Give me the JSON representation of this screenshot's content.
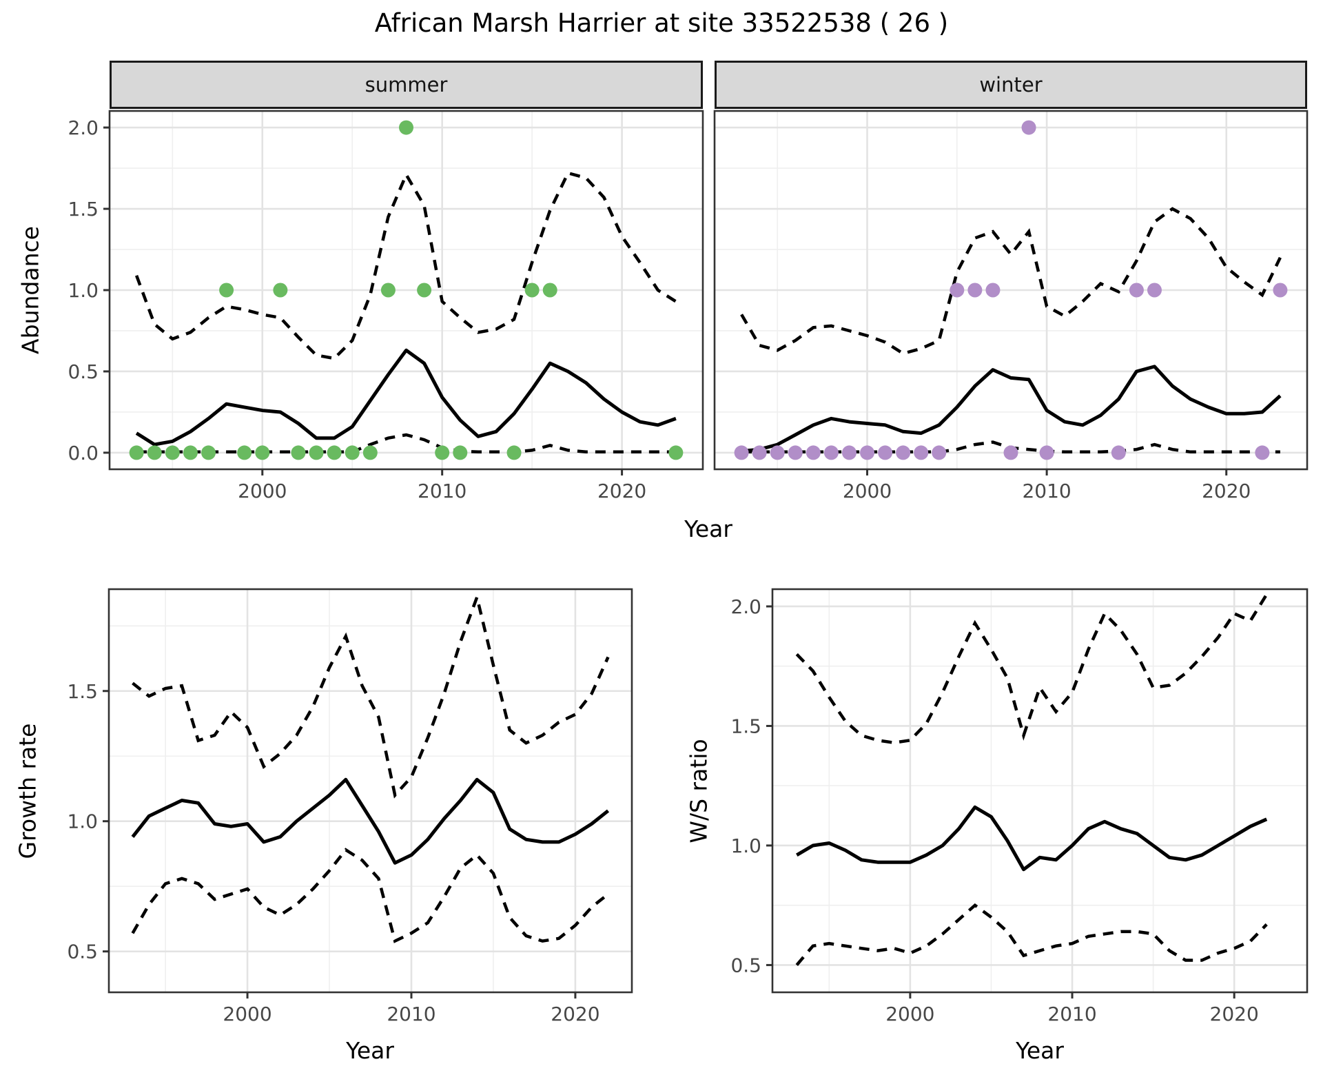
{
  "title": "African Marsh Harrier at site 33522538 ( 26 )",
  "colors": {
    "summer_point": "#69BA60",
    "winter_point": "#B18EC8",
    "line": "#000000",
    "grid_major": "#E3E3E3",
    "grid_minor": "#EFEFEF",
    "panel_border": "#333333",
    "strip_background": "#D8D8D8",
    "strip_border": "#1A1A1A",
    "axis_text": "#474747",
    "title_text": "#000000",
    "background": "#FFFFFF"
  },
  "chart_data": [
    {
      "type": "line",
      "title": "Abundance by season",
      "ylabel": "Abundance",
      "xlabel": "Year",
      "xticks": [
        2000,
        2010,
        2020
      ],
      "xtick_labels": [
        "2000",
        "2010",
        "2020"
      ],
      "x_minor": [
        1995,
        2005,
        2015
      ],
      "yticks": [
        0,
        0.5,
        1,
        1.5,
        2
      ],
      "ytick_labels": [
        "0.0",
        "0.5",
        "1.0",
        "1.5",
        "2.0"
      ],
      "y_minor": [
        0.25,
        0.75,
        1.25,
        1.75
      ],
      "xlim": [
        1991.5,
        2024.5
      ],
      "ylim": [
        -0.1,
        2.1
      ],
      "grid": true,
      "legend": "none",
      "facets": [
        {
          "name": "summer",
          "point_color": "#69BA60",
          "x": [
            1993,
            1994,
            1995,
            1996,
            1997,
            1998,
            1999,
            2000,
            2001,
            2002,
            2003,
            2004,
            2005,
            2006,
            2007,
            2008,
            2009,
            2010,
            2011,
            2012,
            2013,
            2014,
            2015,
            2016,
            2017,
            2018,
            2019,
            2020,
            2021,
            2022,
            2023
          ],
          "mean": [
            0.12,
            0.05,
            0.07,
            0.13,
            0.21,
            0.3,
            0.28,
            0.26,
            0.25,
            0.18,
            0.09,
            0.09,
            0.16,
            0.32,
            0.48,
            0.63,
            0.55,
            0.34,
            0.2,
            0.1,
            0.13,
            0.24,
            0.39,
            0.55,
            0.5,
            0.43,
            0.33,
            0.25,
            0.19,
            0.17,
            0.21
          ],
          "upper": [
            1.09,
            0.79,
            0.7,
            0.74,
            0.83,
            0.9,
            0.88,
            0.85,
            0.83,
            0.71,
            0.6,
            0.58,
            0.69,
            0.97,
            1.45,
            1.71,
            1.52,
            0.93,
            0.83,
            0.74,
            0.76,
            0.82,
            1.17,
            1.49,
            1.72,
            1.69,
            1.57,
            1.33,
            1.17,
            1.0,
            0.93
          ],
          "lower": [
            0.005,
            0.005,
            0.005,
            0.005,
            0.005,
            0.005,
            0.005,
            0.005,
            0.005,
            0.005,
            0.005,
            0.005,
            0.005,
            0.05,
            0.09,
            0.11,
            0.08,
            0.03,
            0.01,
            0.005,
            0.005,
            0.005,
            0.015,
            0.045,
            0.015,
            0.005,
            0.005,
            0.005,
            0.005,
            0.005,
            0.005
          ],
          "obs_years": [
            1993,
            1994,
            1995,
            1996,
            1997,
            1998,
            1999,
            2000,
            2001,
            2002,
            2003,
            2004,
            2005,
            2006,
            2007,
            2008,
            2009,
            2010,
            2011,
            2014,
            2015,
            2016,
            2023
          ],
          "obs_values": [
            0,
            0,
            0,
            0,
            0,
            1,
            0,
            0,
            1,
            0,
            0,
            0,
            0,
            0,
            1,
            2,
            1,
            0,
            0,
            0,
            1,
            1,
            0
          ]
        },
        {
          "name": "winter",
          "point_color": "#B18EC8",
          "x": [
            1993,
            1994,
            1995,
            1996,
            1997,
            1998,
            1999,
            2000,
            2001,
            2002,
            2003,
            2004,
            2005,
            2006,
            2007,
            2008,
            2009,
            2010,
            2011,
            2012,
            2013,
            2014,
            2015,
            2016,
            2017,
            2018,
            2019,
            2020,
            2021,
            2022,
            2023
          ],
          "mean": [
            0.01,
            0.02,
            0.05,
            0.11,
            0.17,
            0.21,
            0.19,
            0.18,
            0.17,
            0.13,
            0.12,
            0.17,
            0.28,
            0.41,
            0.51,
            0.46,
            0.45,
            0.26,
            0.19,
            0.17,
            0.23,
            0.33,
            0.5,
            0.53,
            0.41,
            0.33,
            0.28,
            0.24,
            0.24,
            0.25,
            0.35
          ],
          "upper": [
            0.85,
            0.66,
            0.63,
            0.69,
            0.77,
            0.78,
            0.75,
            0.72,
            0.68,
            0.61,
            0.64,
            0.69,
            1.11,
            1.32,
            1.36,
            1.22,
            1.36,
            0.9,
            0.84,
            0.93,
            1.04,
            0.99,
            1.18,
            1.42,
            1.5,
            1.44,
            1.32,
            1.14,
            1.05,
            0.97,
            1.2
          ],
          "lower": [
            0.005,
            0.005,
            0.005,
            0.005,
            0.005,
            0.005,
            0.005,
            0.005,
            0.005,
            0.005,
            0.005,
            0.005,
            0.02,
            0.05,
            0.065,
            0.03,
            0.02,
            0.01,
            0.005,
            0.005,
            0.005,
            0.01,
            0.02,
            0.05,
            0.02,
            0.005,
            0.005,
            0.005,
            0.005,
            0.005,
            0.005
          ],
          "obs_years": [
            1993,
            1994,
            1995,
            1996,
            1997,
            1998,
            1999,
            2000,
            2001,
            2002,
            2003,
            2004,
            2005,
            2006,
            2007,
            2008,
            2009,
            2010,
            2014,
            2015,
            2016,
            2022,
            2023
          ],
          "obs_values": [
            0,
            0,
            0,
            0,
            0,
            0,
            0,
            0,
            0,
            0,
            0,
            0,
            1,
            1,
            1,
            0,
            2,
            0,
            0,
            1,
            1,
            0,
            1
          ]
        }
      ]
    },
    {
      "type": "line",
      "title": "Growth rate",
      "ylabel": "Growth rate",
      "xlabel": "Year",
      "xticks": [
        2000,
        2010,
        2020
      ],
      "xtick_labels": [
        "2000",
        "2010",
        "2020"
      ],
      "x_minor": [
        1995,
        2005,
        2015
      ],
      "yticks": [
        0.5,
        1,
        1.5
      ],
      "ytick_labels": [
        "0.5",
        "1.0",
        "1.5"
      ],
      "y_minor": [
        0.75,
        1.25,
        1.75
      ],
      "xlim": [
        1991.55,
        2023.45
      ],
      "ylim": [
        0.343,
        1.891
      ],
      "grid": true,
      "legend": "none",
      "x": [
        1993,
        1994,
        1995,
        1996,
        1997,
        1998,
        1999,
        2000,
        2001,
        2002,
        2003,
        2004,
        2005,
        2006,
        2007,
        2008,
        2009,
        2010,
        2011,
        2012,
        2013,
        2014,
        2015,
        2016,
        2017,
        2018,
        2019,
        2020,
        2021,
        2022
      ],
      "mean": [
        0.94,
        1.02,
        1.05,
        1.08,
        1.07,
        0.99,
        0.98,
        0.99,
        0.92,
        0.94,
        1.0,
        1.05,
        1.1,
        1.16,
        1.06,
        0.96,
        0.84,
        0.87,
        0.93,
        1.01,
        1.08,
        1.16,
        1.11,
        0.97,
        0.93,
        0.92,
        0.92,
        0.95,
        0.99,
        1.04
      ],
      "upper": [
        1.53,
        1.48,
        1.51,
        1.52,
        1.31,
        1.33,
        1.42,
        1.36,
        1.21,
        1.26,
        1.33,
        1.44,
        1.59,
        1.71,
        1.52,
        1.4,
        1.1,
        1.17,
        1.32,
        1.49,
        1.69,
        1.86,
        1.6,
        1.35,
        1.3,
        1.33,
        1.38,
        1.41,
        1.49,
        1.63
      ],
      "lower": [
        0.57,
        0.68,
        0.76,
        0.78,
        0.76,
        0.7,
        0.72,
        0.74,
        0.67,
        0.64,
        0.68,
        0.74,
        0.81,
        0.89,
        0.85,
        0.78,
        0.54,
        0.57,
        0.61,
        0.71,
        0.82,
        0.87,
        0.8,
        0.63,
        0.56,
        0.54,
        0.55,
        0.6,
        0.67,
        0.72
      ]
    },
    {
      "type": "line",
      "title": "W/S ratio",
      "ylabel": "W/S ratio",
      "xlabel": "Year",
      "xticks": [
        2000,
        2010,
        2020
      ],
      "xtick_labels": [
        "2000",
        "2010",
        "2020"
      ],
      "x_minor": [
        1995,
        2005,
        2015
      ],
      "yticks": [
        0.5,
        1,
        1.5,
        2
      ],
      "ytick_labels": [
        "0.5",
        "1.0",
        "1.5",
        "2.0"
      ],
      "y_minor": [
        0.75,
        1.25,
        1.75
      ],
      "xlim": [
        1991.5,
        2024.5
      ],
      "ylim": [
        0.386,
        2.072
      ],
      "grid": true,
      "legend": "none",
      "x": [
        1993,
        1994,
        1995,
        1996,
        1997,
        1998,
        1999,
        2000,
        2001,
        2002,
        2003,
        2004,
        2005,
        2006,
        2007,
        2008,
        2009,
        2010,
        2011,
        2012,
        2013,
        2014,
        2015,
        2016,
        2017,
        2018,
        2019,
        2020,
        2021,
        2022
      ],
      "mean": [
        0.96,
        1.0,
        1.01,
        0.98,
        0.94,
        0.93,
        0.93,
        0.93,
        0.96,
        1.0,
        1.07,
        1.16,
        1.12,
        1.02,
        0.9,
        0.95,
        0.94,
        1.0,
        1.07,
        1.1,
        1.07,
        1.05,
        1.0,
        0.95,
        0.94,
        0.96,
        1.0,
        1.04,
        1.08,
        1.11
      ],
      "upper": [
        1.8,
        1.73,
        1.62,
        1.52,
        1.46,
        1.44,
        1.43,
        1.44,
        1.51,
        1.64,
        1.79,
        1.93,
        1.82,
        1.7,
        1.46,
        1.66,
        1.56,
        1.64,
        1.82,
        1.97,
        1.9,
        1.8,
        1.66,
        1.67,
        1.72,
        1.79,
        1.87,
        1.97,
        1.94,
        2.05
      ],
      "lower": [
        0.5,
        0.58,
        0.59,
        0.58,
        0.57,
        0.56,
        0.57,
        0.55,
        0.58,
        0.63,
        0.69,
        0.75,
        0.7,
        0.64,
        0.54,
        0.56,
        0.58,
        0.59,
        0.62,
        0.63,
        0.64,
        0.64,
        0.63,
        0.56,
        0.52,
        0.52,
        0.55,
        0.57,
        0.6,
        0.67
      ]
    }
  ]
}
